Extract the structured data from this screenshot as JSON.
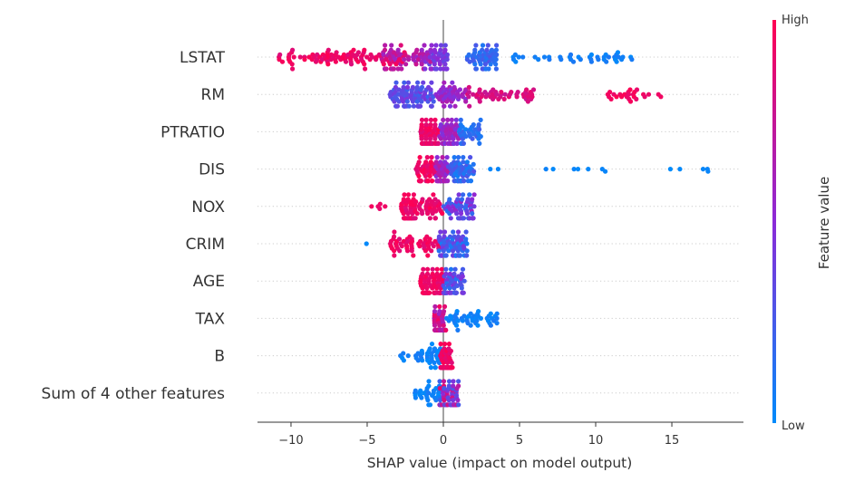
{
  "chart_data": {
    "type": "scatter",
    "subtype": "shap-beeswarm",
    "title": "",
    "xlabel": "SHAP value (impact on model output)",
    "xlim": [
      -12.2,
      19.7
    ],
    "xticks": [
      -10,
      -5,
      0,
      5,
      10,
      15
    ],
    "xtick_labels": [
      "−10",
      "−5",
      "0",
      "5",
      "10",
      "15"
    ],
    "colorbar": {
      "high_label": "High",
      "low_label": "Low",
      "title": "Feature value",
      "high_color": "#ff0052",
      "mid_color": "#8b2ad8",
      "low_color": "#008bfb"
    },
    "features": [
      {
        "name": "LSTAT",
        "min": -10.9,
        "max": 12.5,
        "clusters": [
          {
            "range": [
              -10.9,
              -2.5
            ],
            "n": 95,
            "value": [
              0.85,
              1.0
            ]
          },
          {
            "range": [
              -4.5,
              -0.8
            ],
            "n": 60,
            "value": [
              0.55,
              0.8
            ]
          },
          {
            "range": [
              -1.2,
              0.3
            ],
            "n": 45,
            "value": [
              0.35,
              0.55
            ]
          },
          {
            "range": [
              1.5,
              3.5
            ],
            "n": 55,
            "value": [
              0.1,
              0.3
            ]
          },
          {
            "range": [
              4.5,
              12.5
            ],
            "n": 40,
            "value": [
              0.0,
              0.1
            ]
          }
        ]
      },
      {
        "name": "RM",
        "min": -3.5,
        "max": 14.4,
        "clusters": [
          {
            "range": [
              -3.5,
              -0.5
            ],
            "n": 90,
            "value": [
              0.2,
              0.45
            ]
          },
          {
            "range": [
              -0.5,
              1.5
            ],
            "n": 45,
            "value": [
              0.45,
              0.65
            ]
          },
          {
            "range": [
              1.5,
              6.0
            ],
            "n": 50,
            "value": [
              0.75,
              0.9
            ]
          },
          {
            "range": [
              10.7,
              14.4
            ],
            "n": 25,
            "value": [
              0.9,
              1.0
            ]
          }
        ]
      },
      {
        "name": "PTRATIO",
        "min": -1.5,
        "max": 2.5,
        "clusters": [
          {
            "range": [
              -1.5,
              -0.3
            ],
            "n": 80,
            "value": [
              0.85,
              1.0
            ]
          },
          {
            "range": [
              -0.3,
              1.0
            ],
            "n": 60,
            "value": [
              0.45,
              0.7
            ]
          },
          {
            "range": [
              1.0,
              2.5
            ],
            "n": 40,
            "value": [
              0.05,
              0.25
            ]
          }
        ]
      },
      {
        "name": "DIS",
        "min": -1.8,
        "max": 18.3,
        "clusters": [
          {
            "range": [
              -1.8,
              -0.5
            ],
            "n": 45,
            "value": [
              0.85,
              1.0
            ]
          },
          {
            "range": [
              -0.5,
              0.3
            ],
            "n": 45,
            "value": [
              0.45,
              0.7
            ]
          },
          {
            "range": [
              0.3,
              2.0
            ],
            "n": 60,
            "value": [
              0.05,
              0.3
            ]
          },
          {
            "range": [
              3.0,
              18.3
            ],
            "n": 14,
            "value": [
              0.0,
              0.05
            ]
          }
        ]
      },
      {
        "name": "NOX",
        "min": -4.8,
        "max": 2.1,
        "clusters": [
          {
            "range": [
              -4.8,
              -3.5
            ],
            "n": 5,
            "value": [
              0.9,
              1.0
            ]
          },
          {
            "range": [
              -2.8,
              0.0
            ],
            "n": 90,
            "value": [
              0.85,
              1.0
            ]
          },
          {
            "range": [
              0.0,
              2.1
            ],
            "n": 60,
            "value": [
              0.1,
              0.6
            ]
          }
        ]
      },
      {
        "name": "CRIM",
        "min": -5.1,
        "max": 1.6,
        "clusters": [
          {
            "range": [
              -5.1,
              -5.0
            ],
            "n": 1,
            "value": [
              0.0,
              0.1
            ]
          },
          {
            "range": [
              -3.5,
              -0.3
            ],
            "n": 55,
            "value": [
              0.85,
              1.0
            ]
          },
          {
            "range": [
              -0.3,
              1.6
            ],
            "n": 80,
            "value": [
              0.05,
              0.45
            ]
          }
        ]
      },
      {
        "name": "AGE",
        "min": -1.5,
        "max": 1.4,
        "clusters": [
          {
            "range": [
              -1.5,
              0.0
            ],
            "n": 80,
            "value": [
              0.85,
              1.0
            ]
          },
          {
            "range": [
              0.0,
              1.4
            ],
            "n": 60,
            "value": [
              0.1,
              0.55
            ]
          }
        ]
      },
      {
        "name": "TAX",
        "min": -0.6,
        "max": 3.6,
        "clusters": [
          {
            "range": [
              -0.6,
              0.2
            ],
            "n": 80,
            "value": [
              0.55,
              0.95
            ]
          },
          {
            "range": [
              0.2,
              3.6
            ],
            "n": 45,
            "value": [
              0.0,
              0.1
            ]
          }
        ]
      },
      {
        "name": "B",
        "min": -2.9,
        "max": 0.6,
        "clusters": [
          {
            "range": [
              -2.9,
              0.0
            ],
            "n": 40,
            "value": [
              0.0,
              0.1
            ]
          },
          {
            "range": [
              -0.2,
              0.6
            ],
            "n": 80,
            "value": [
              0.85,
              1.0
            ]
          }
        ]
      },
      {
        "name": "Sum of 4 other features",
        "min": -1.9,
        "max": 1.0,
        "clusters": [
          {
            "range": [
              -1.9,
              -0.2
            ],
            "n": 30,
            "value": [
              0.0,
              0.1
            ]
          },
          {
            "range": [
              -0.3,
              1.0
            ],
            "n": 70,
            "value": [
              0.2,
              0.9
            ]
          }
        ]
      }
    ]
  }
}
